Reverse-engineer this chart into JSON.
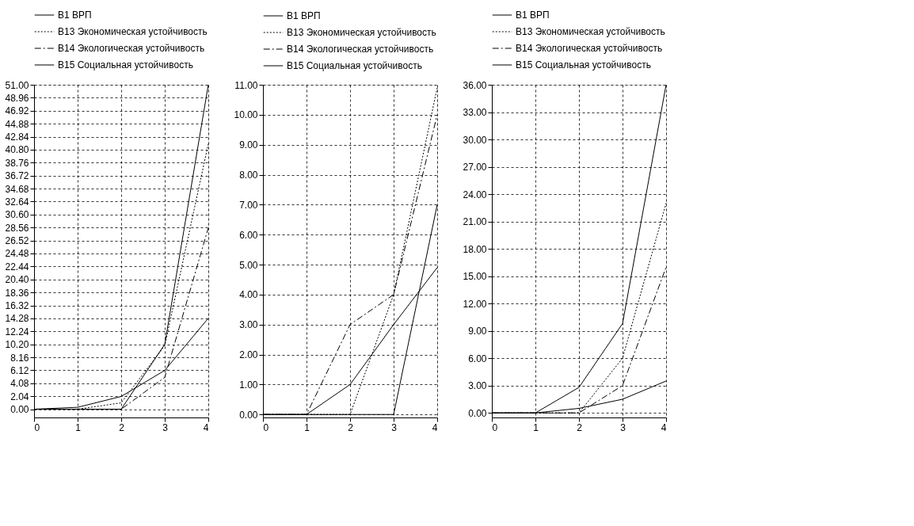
{
  "chart_data": [
    {
      "type": "line",
      "x": [
        0,
        1,
        2,
        3,
        4
      ],
      "xlim": [
        0,
        4
      ],
      "xticks": [
        0,
        1,
        2,
        3,
        4
      ],
      "ylim": [
        -1.3,
        51
      ],
      "yticks": [
        {
          "value": 0,
          "label": "0.00"
        },
        {
          "value": 2.04,
          "label": "2.04"
        },
        {
          "value": 4.08,
          "label": "4.08"
        },
        {
          "value": 6.12,
          "label": "6.12"
        },
        {
          "value": 8.16,
          "label": "8.16"
        },
        {
          "value": 10.2,
          "label": "10.20"
        },
        {
          "value": 12.24,
          "label": "12.24"
        },
        {
          "value": 14.28,
          "label": "14.28"
        },
        {
          "value": 16.32,
          "label": "16.32"
        },
        {
          "value": 18.36,
          "label": "18.36"
        },
        {
          "value": 20.4,
          "label": "20.40"
        },
        {
          "value": 22.44,
          "label": "22.44"
        },
        {
          "value": 24.48,
          "label": "24.48"
        },
        {
          "value": 26.52,
          "label": "26.52"
        },
        {
          "value": 28.56,
          "label": "28.56"
        },
        {
          "value": 30.6,
          "label": "30.60"
        },
        {
          "value": 32.64,
          "label": "32.64"
        },
        {
          "value": 34.68,
          "label": "34.68"
        },
        {
          "value": 36.72,
          "label": "36.72"
        },
        {
          "value": 38.76,
          "label": "38.76"
        },
        {
          "value": 40.8,
          "label": "40.80"
        },
        {
          "value": 42.84,
          "label": "42.84"
        },
        {
          "value": 44.88,
          "label": "44.88"
        },
        {
          "value": 46.92,
          "label": "46.92"
        },
        {
          "value": 48.96,
          "label": "48.96"
        },
        {
          "value": 51,
          "label": "51.00"
        }
      ],
      "grid": true,
      "legend": "top left",
      "series": [
        {
          "name": "B1 ВРП",
          "color": "#000000",
          "line_style": "solid",
          "values": [
            0,
            0.3,
            2,
            6.1,
            14.3
          ]
        },
        {
          "name": "B13 Экономическая устойчивость",
          "color": "#000000",
          "line_style": "dotted",
          "values": [
            0,
            0,
            1,
            10,
            41.7
          ]
        },
        {
          "name": "B14 Экологическая устойчивость",
          "color": "#000000",
          "line_style": "dashed",
          "values": [
            0,
            0,
            0,
            5,
            28.5
          ]
        },
        {
          "name": "B15 Социальная устойчивость",
          "color": "#000000",
          "line_style": "solid",
          "values": [
            0,
            0,
            0,
            10.2,
            51
          ]
        }
      ]
    },
    {
      "type": "line",
      "x": [
        0,
        1,
        2,
        3,
        4
      ],
      "xlim": [
        0,
        4
      ],
      "xticks": [
        0,
        1,
        2,
        3,
        4
      ],
      "ylim": [
        -0.1,
        11
      ],
      "yticks": [
        {
          "value": 0,
          "label": "0.00"
        },
        {
          "value": 1,
          "label": "1.00"
        },
        {
          "value": 2,
          "label": "2.00"
        },
        {
          "value": 3,
          "label": "3.00"
        },
        {
          "value": 4,
          "label": "4.00"
        },
        {
          "value": 5,
          "label": "5.00"
        },
        {
          "value": 6,
          "label": "6.00"
        },
        {
          "value": 7,
          "label": "7.00"
        },
        {
          "value": 8,
          "label": "8.00"
        },
        {
          "value": 9,
          "label": "9.00"
        },
        {
          "value": 10,
          "label": "10.00"
        },
        {
          "value": 11,
          "label": "11.00"
        }
      ],
      "grid": true,
      "legend": "top left",
      "series": [
        {
          "name": "B1 ВРП",
          "color": "#000000",
          "line_style": "solid",
          "values": [
            0,
            0,
            1,
            3,
            4.9
          ]
        },
        {
          "name": "B13 Экономическая устойчивость",
          "color": "#000000",
          "line_style": "dotted",
          "values": [
            0,
            0,
            0,
            4,
            10.9
          ]
        },
        {
          "name": "B14 Экологическая устойчивость",
          "color": "#000000",
          "line_style": "dashed",
          "values": [
            0,
            0,
            3,
            4,
            10
          ]
        },
        {
          "name": "B15 Социальная устойчивость",
          "color": "#000000",
          "line_style": "solid",
          "values": [
            0,
            0,
            0,
            0,
            7
          ]
        }
      ]
    },
    {
      "type": "line",
      "x": [
        0,
        1,
        2,
        3,
        4
      ],
      "xlim": [
        0,
        4
      ],
      "xticks": [
        0,
        1,
        2,
        3,
        4
      ],
      "ylim": [
        -0.5,
        36
      ],
      "yticks": [
        {
          "value": 0,
          "label": "0.00"
        },
        {
          "value": 3,
          "label": "3.00"
        },
        {
          "value": 6,
          "label": "6.00"
        },
        {
          "value": 9,
          "label": "9.00"
        },
        {
          "value": 12,
          "label": "12.00"
        },
        {
          "value": 15,
          "label": "15.00"
        },
        {
          "value": 18,
          "label": "18.00"
        },
        {
          "value": 21,
          "label": "21.00"
        },
        {
          "value": 24,
          "label": "24.00"
        },
        {
          "value": 27,
          "label": "27.00"
        },
        {
          "value": 30,
          "label": "30.00"
        },
        {
          "value": 33,
          "label": "33.00"
        },
        {
          "value": 36,
          "label": "36.00"
        }
      ],
      "grid": true,
      "legend": "top left",
      "series": [
        {
          "name": "B1 ВРП",
          "color": "#000000",
          "line_style": "solid",
          "values": [
            0,
            0,
            0.5,
            1.5,
            3.5
          ]
        },
        {
          "name": "B13 Экономическая устойчивость",
          "color": "#000000",
          "line_style": "dotted",
          "values": [
            0,
            0,
            0,
            6,
            23
          ]
        },
        {
          "name": "B14 Экологическая устойчивость",
          "color": "#000000",
          "line_style": "dashed",
          "values": [
            0,
            0,
            0,
            3,
            16
          ]
        },
        {
          "name": "B15 Социальная устойчивость",
          "color": "#000000",
          "line_style": "solid",
          "values": [
            0,
            0,
            2.8,
            9.8,
            36
          ]
        }
      ]
    }
  ]
}
